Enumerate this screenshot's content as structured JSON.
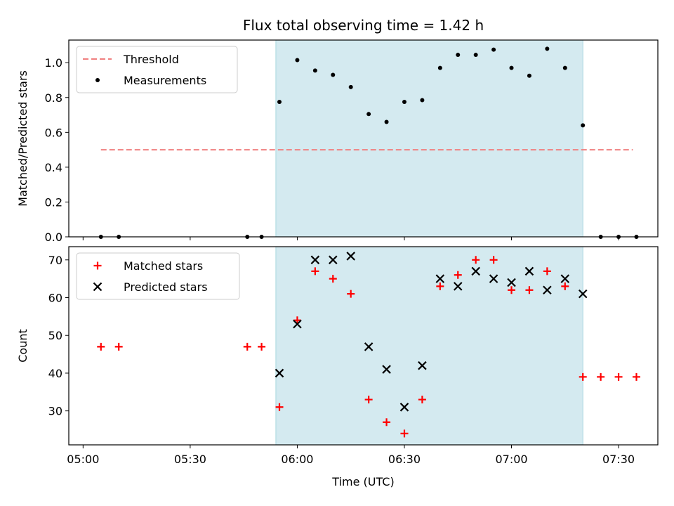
{
  "chart_data": [
    {
      "type": "scatter",
      "title": "Flux total observing time = 1.42 h",
      "ylabel": "Matched/Predicted stars",
      "xlabel": "",
      "xlim": [
        "04:56",
        "07:41"
      ],
      "ylim": [
        0,
        1.13
      ],
      "yticks": [
        0.0,
        0.2,
        0.4,
        0.6,
        0.8,
        1.0
      ],
      "ytick_labels": [
        "0.0",
        "0.2",
        "0.4",
        "0.6",
        "0.8",
        "1.0"
      ],
      "shaded_interval": [
        "05:54",
        "07:20"
      ],
      "shade_color": "#d4eaf0",
      "legend_position": "upper-left",
      "series": [
        {
          "name": "Threshold",
          "style": "dashed-line",
          "color": "#f08080",
          "x": [
            "05:05",
            "07:34"
          ],
          "y": [
            0.5,
            0.5
          ]
        },
        {
          "name": "Measurements",
          "style": "dot",
          "color": "#000000",
          "x": [
            "05:05",
            "05:10",
            "05:46",
            "05:50",
            "05:55",
            "06:00",
            "06:05",
            "06:10",
            "06:15",
            "06:20",
            "06:25",
            "06:30",
            "06:35",
            "06:40",
            "06:45",
            "06:50",
            "06:55",
            "07:00",
            "07:05",
            "07:10",
            "07:15",
            "07:20",
            "07:25",
            "07:30",
            "07:35"
          ],
          "y": [
            0,
            0,
            0,
            0,
            0.775,
            1.015,
            0.955,
            0.93,
            0.86,
            0.705,
            0.66,
            0.775,
            0.785,
            0.97,
            1.045,
            1.045,
            1.075,
            0.97,
            0.925,
            1.08,
            0.97,
            0.64,
            0,
            0,
            0
          ]
        }
      ]
    },
    {
      "type": "scatter",
      "title": "",
      "ylabel": "Count",
      "xlabel": "Time (UTC)",
      "xlim": [
        "04:56",
        "07:41"
      ],
      "ylim": [
        21,
        73.5
      ],
      "yticks": [
        30,
        40,
        50,
        60,
        70
      ],
      "ytick_labels": [
        "30",
        "40",
        "50",
        "60",
        "70"
      ],
      "xticks": [
        "05:00",
        "05:30",
        "06:00",
        "06:30",
        "07:00",
        "07:30"
      ],
      "xtick_labels": [
        "05:00",
        "05:30",
        "06:00",
        "06:30",
        "07:00",
        "07:30"
      ],
      "shaded_interval": [
        "05:54",
        "07:20"
      ],
      "shade_color": "#d4eaf0",
      "legend_position": "upper-left",
      "series": [
        {
          "name": "Matched stars",
          "style": "plus",
          "color": "#ff0000",
          "x": [
            "05:05",
            "05:10",
            "05:46",
            "05:50",
            "05:55",
            "06:00",
            "06:05",
            "06:10",
            "06:15",
            "06:20",
            "06:25",
            "06:30",
            "06:35",
            "06:40",
            "06:45",
            "06:50",
            "06:55",
            "07:00",
            "07:05",
            "07:10",
            "07:15",
            "07:20",
            "07:25",
            "07:30",
            "07:35"
          ],
          "y": [
            47,
            47,
            47,
            47,
            31,
            54,
            67,
            65,
            61,
            33,
            27,
            24,
            33,
            63,
            66,
            70,
            70,
            62,
            62,
            67,
            63,
            39,
            39,
            39,
            39
          ]
        },
        {
          "name": "Predicted stars",
          "style": "x",
          "color": "#000000",
          "x": [
            "05:55",
            "06:00",
            "06:05",
            "06:10",
            "06:15",
            "06:20",
            "06:25",
            "06:30",
            "06:35",
            "06:40",
            "06:45",
            "06:50",
            "06:55",
            "07:00",
            "07:05",
            "07:10",
            "07:15",
            "07:20"
          ],
          "y": [
            40,
            53,
            70,
            70,
            71,
            47,
            41,
            31,
            42,
            65,
            63,
            67,
            65,
            64,
            67,
            62,
            65,
            61
          ]
        }
      ]
    }
  ]
}
